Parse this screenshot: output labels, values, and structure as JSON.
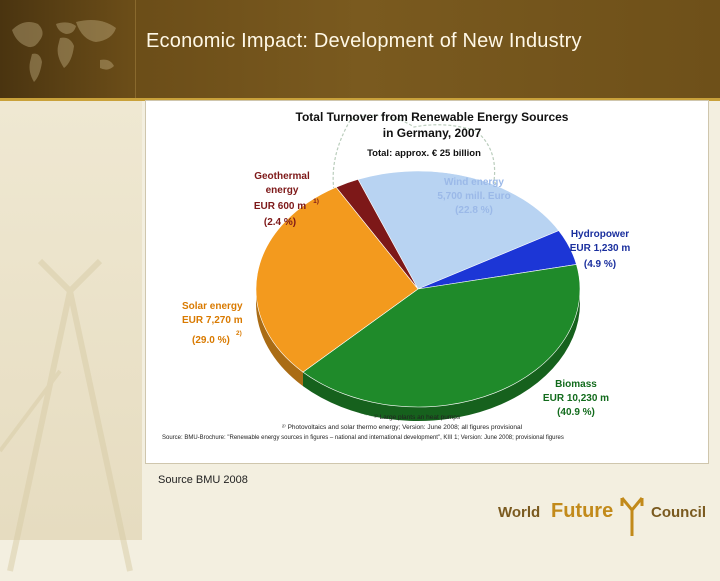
{
  "slide": {
    "title": "Economic Impact: Development of New Industry",
    "source": "Source BMU 2008"
  },
  "logo": {
    "word1": "World",
    "word2": "Future",
    "word3": "Council"
  },
  "colors": {
    "wind": "#b8d3f2",
    "hydro": "#1c36d6",
    "biomass": "#1f8a2a",
    "solar": "#f39a1e",
    "geothermal": "#7d1818",
    "label_blue": "#1a2f9e",
    "label_green": "#126b1c",
    "label_orange": "#d97a00",
    "label_maroon": "#7d1818",
    "header": "#6b4d18"
  },
  "chart_data": {
    "type": "pie",
    "title": "Total Turnover from Renewable Energy Sources",
    "title_line2": "in Germany, 2007",
    "subtitle": "Total: approx. € 25 billion",
    "slices": [
      {
        "key": "wind",
        "name": "Wind energy",
        "amount": "5,700 mill. Euro",
        "percent_label": "(22.8 %)",
        "value": 22.8
      },
      {
        "key": "hydro",
        "name": "Hydropower",
        "amount": "EUR 1,230 m",
        "percent_label": "(4.9 %)",
        "value": 4.9
      },
      {
        "key": "biomass",
        "name": "Biomass",
        "amount": "EUR 10,230 m",
        "percent_label": "(40.9 %)",
        "value": 40.9
      },
      {
        "key": "solar",
        "name": "Solar energy",
        "amount": "EUR 7,270 m",
        "percent_label": "(29.0 %)",
        "value": 29.0,
        "note": "2)"
      },
      {
        "key": "geothermal",
        "name": "Geothermal",
        "name_line2": "energy",
        "amount": "EUR 600 m",
        "percent_label": "(2.4 %)",
        "value": 2.4,
        "note": "1)"
      }
    ],
    "footnotes": [
      "¹⁾ Large plants an heat pumps",
      "²⁾ Photovoltaics and solar thermo energy; Version: June 2008; all figures provisional",
      "Source: BMU-Brochure: \"Renewable energy sources in figures – national and international development\", KIII 1; Version: June 2008; provisional figures"
    ]
  }
}
